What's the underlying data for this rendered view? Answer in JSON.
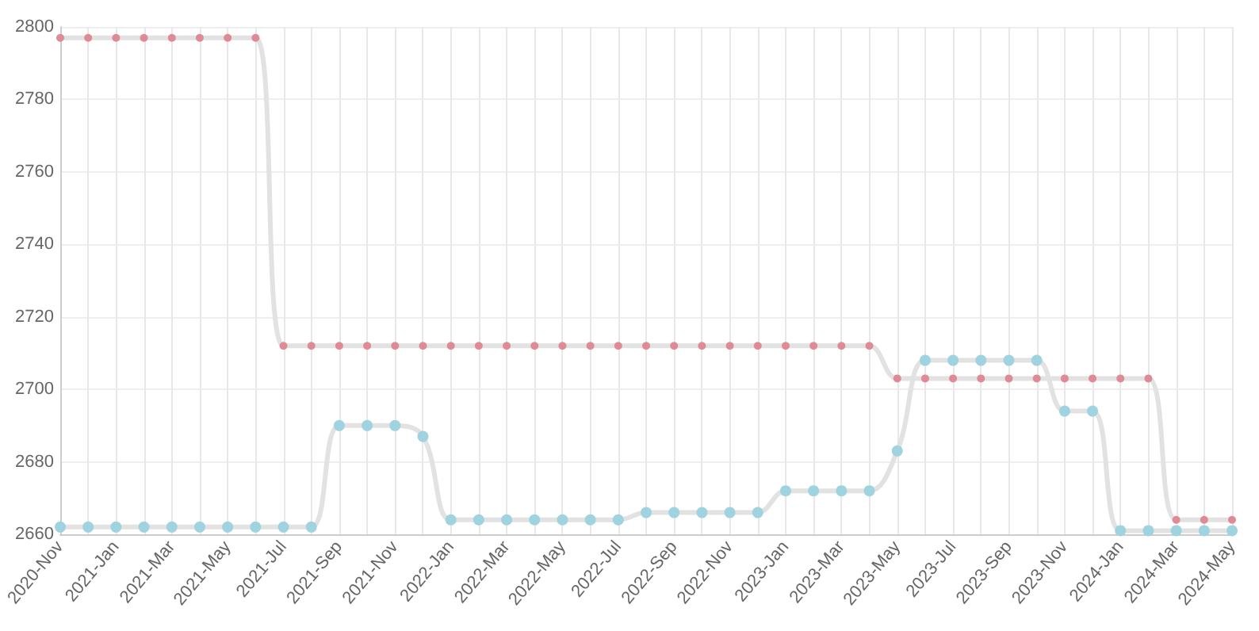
{
  "chart_data": {
    "type": "line",
    "categories": [
      "2020-Nov",
      null,
      "2021-Jan",
      null,
      "2021-Mar",
      null,
      "2021-May",
      null,
      "2021-Jul",
      null,
      "2021-Sep",
      null,
      "2021-Nov",
      null,
      "2022-Jan",
      null,
      "2022-Mar",
      null,
      "2022-May",
      null,
      "2022-Jul",
      null,
      "2022-Sep",
      null,
      "2022-Nov",
      null,
      "2023-Jan",
      null,
      "2023-Mar",
      null,
      "2023-May",
      null,
      "2023-Jul",
      null,
      "2023-Sep",
      null,
      "2023-Nov",
      null,
      "2024-Jan",
      null,
      "2024-Mar",
      null,
      "2024-May"
    ],
    "series": [
      {
        "color": "#e08a95",
        "values": [
          2797,
          2797,
          2797,
          2797,
          2797,
          2797,
          2797,
          2797,
          2712,
          2712,
          2712,
          2712,
          2712,
          2712,
          2712,
          2712,
          2712,
          2712,
          2712,
          2712,
          2712,
          2712,
          2712,
          2712,
          2712,
          2712,
          2712,
          2712,
          2712,
          2712,
          2703,
          2703,
          2703,
          2703,
          2703,
          2703,
          2703,
          2703,
          2703,
          2703,
          2664,
          2664,
          2664
        ]
      },
      {
        "color": "#9fd3df",
        "values": [
          2662,
          2662,
          2662,
          2662,
          2662,
          2662,
          2662,
          2662,
          2662,
          2662,
          2690,
          2690,
          2690,
          2687,
          2664,
          2664,
          2664,
          2664,
          2664,
          2664,
          2664,
          2666,
          2666,
          2666,
          2666,
          2666,
          2672,
          2672,
          2672,
          2672,
          2683,
          2708,
          2708,
          2708,
          2708,
          2708,
          2694,
          2694,
          2661,
          2661,
          2661,
          2661,
          2661
        ]
      }
    ],
    "ylim": [
      2660,
      2800
    ],
    "yticks": [
      2660,
      2680,
      2700,
      2720,
      2740,
      2760,
      2780,
      2800
    ],
    "grid": true,
    "marker": "circle",
    "line_style": "solid"
  }
}
